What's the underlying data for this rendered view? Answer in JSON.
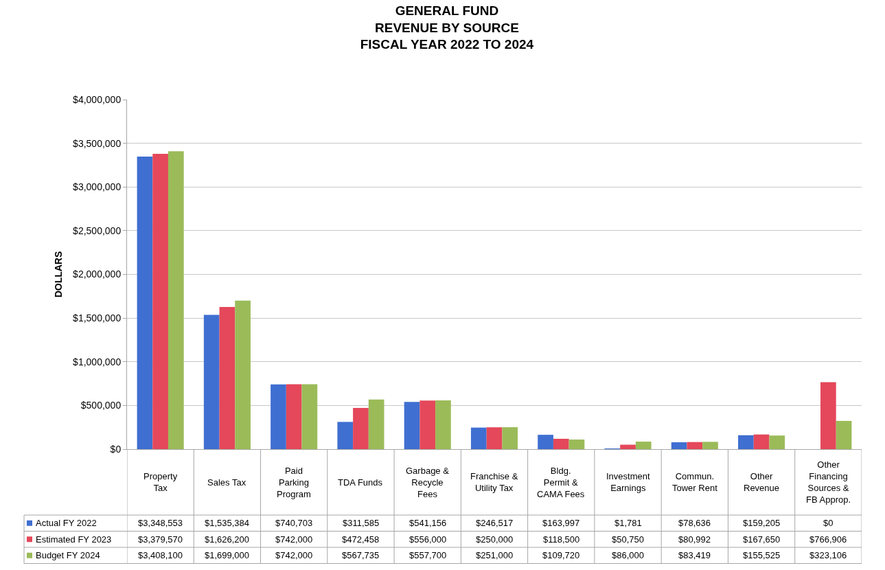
{
  "chart_data": {
    "type": "bar",
    "title": "GENERAL FUND\nREVENUE BY SOURCE\nFISCAL YEAR 2022 TO 2024",
    "ylabel": "DOLLARS",
    "categories": [
      "Property Tax",
      "Sales Tax",
      "Paid Parking Program",
      "TDA Funds",
      "Garbage & Recycle Fees",
      "Franchise & Utility Tax",
      "Bldg. Permit & CAMA Fees",
      "Investment Earnings",
      "Commun. Tower Rent",
      "Other Revenue",
      "Other Financing Sources & FB Approp."
    ],
    "series": [
      {
        "name": "Actual FY 2022",
        "color": "#3f6fd1",
        "values": [
          3348553,
          1535384,
          740703,
          311585,
          541156,
          246517,
          163997,
          1781,
          78636,
          159205,
          0
        ],
        "value_labels": [
          "$3,348,553",
          "$1,535,384",
          "$740,703",
          "$311,585",
          "$541,156",
          "$246,517",
          "$163,997",
          "$1,781",
          "$78,636",
          "$159,205",
          "$0"
        ]
      },
      {
        "name": "Estimated FY 2023",
        "color": "#e4485a",
        "values": [
          3379570,
          1626200,
          742000,
          472458,
          556000,
          250000,
          118500,
          50750,
          80992,
          167650,
          766906
        ],
        "value_labels": [
          "$3,379,570",
          "$1,626,200",
          "$742,000",
          "$472,458",
          "$556,000",
          "$250,000",
          "$118,500",
          "$50,750",
          "$80,992",
          "$167,650",
          "$766,906"
        ]
      },
      {
        "name": "Budget FY 2024",
        "color": "#9bbb59",
        "values": [
          3408100,
          1699000,
          742000,
          567735,
          557700,
          251000,
          109720,
          86000,
          83419,
          155525,
          323106
        ],
        "value_labels": [
          "$3,408,100",
          "$1,699,000",
          "$742,000",
          "$567,735",
          "$557,700",
          "$251,000",
          "$109,720",
          "$86,000",
          "$83,419",
          "$155,525",
          "$323,106"
        ]
      }
    ],
    "ylim": [
      0,
      4000000
    ],
    "yticks": [
      {
        "value": 0,
        "label": "$0"
      },
      {
        "value": 500000,
        "label": "$500,000"
      },
      {
        "value": 1000000,
        "label": "$1,000,000"
      },
      {
        "value": 1500000,
        "label": "$1,500,000"
      },
      {
        "value": 2000000,
        "label": "$2,000,000"
      },
      {
        "value": 2500000,
        "label": "$2,500,000"
      },
      {
        "value": 3000000,
        "label": "$3,000,000"
      },
      {
        "value": 3500000,
        "label": "$3,500,000"
      },
      {
        "value": 4000000,
        "label": "$4,000,000"
      }
    ],
    "grid": "y",
    "legend": "bottom left"
  }
}
